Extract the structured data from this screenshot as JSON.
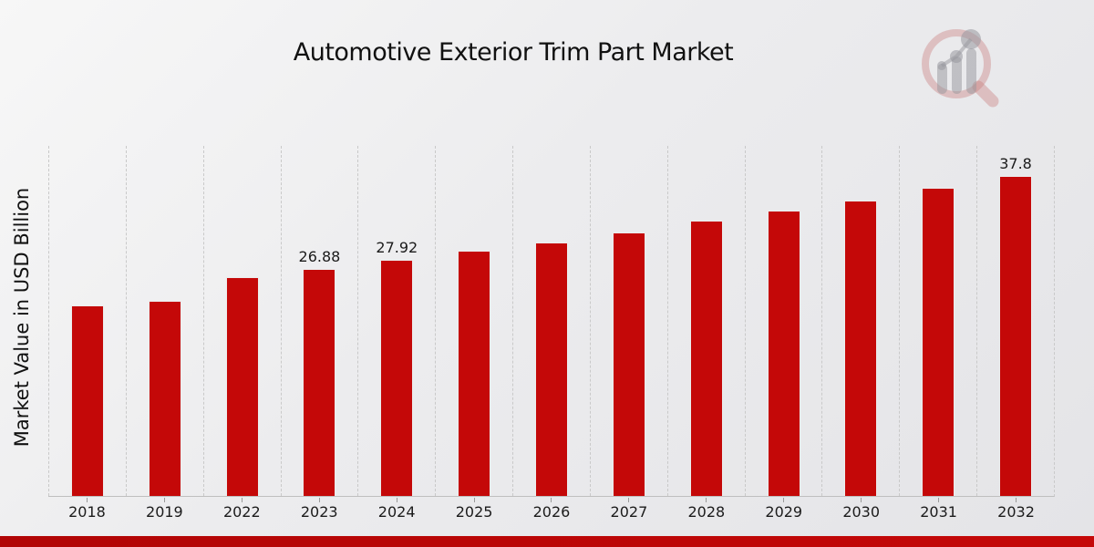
{
  "title": "Automotive Exterior Trim Part Market",
  "ylabel": "Market Value in USD Billion",
  "colors": {
    "bar": "#c40808",
    "footer_bar": "#bf0606",
    "background_light": "#f7f7f7",
    "background_dark": "#e4e4e7",
    "gridline": "#c9c9c9",
    "text": "#1b1b1b"
  },
  "watermark": {
    "name": "magnifier-growth-chart-logo",
    "ring_color": "rgba(200,120,120,0.38)",
    "bars_color": "rgba(150,150,156,0.5)"
  },
  "chart_data": {
    "type": "bar",
    "title": "Automotive Exterior Trim Part Market",
    "xlabel": "",
    "ylabel": "Market Value in USD Billion",
    "categories": [
      "2018",
      "2019",
      "2022",
      "2023",
      "2024",
      "2025",
      "2026",
      "2027",
      "2028",
      "2029",
      "2030",
      "2031",
      "2032"
    ],
    "values": [
      22.5,
      23.1,
      25.9,
      26.88,
      27.92,
      29.0,
      30.0,
      31.2,
      32.5,
      33.7,
      34.9,
      36.4,
      37.8
    ],
    "bar_labels": {
      "2023": "26.88",
      "2024": "27.92",
      "2032": "37.8"
    },
    "ylim": [
      0,
      41.5
    ],
    "grid": "vertical-dashed",
    "legend": "none",
    "bar_color": "#c40808"
  }
}
